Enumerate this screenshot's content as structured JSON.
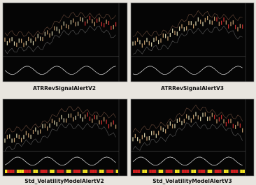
{
  "panels": [
    {
      "caption": "ATRRevSignalAlertV2"
    },
    {
      "caption": "ATRRevSignalAlertV3"
    },
    {
      "caption": "Std_VolatilityModelAlertV2"
    },
    {
      "caption": "Std_VolatilityModelAlertV3"
    }
  ]
}
